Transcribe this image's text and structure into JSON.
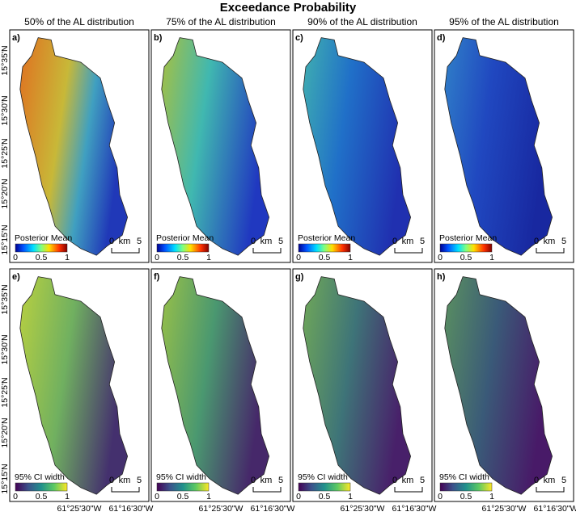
{
  "title": "Exceedance Probability",
  "columns": [
    "50% of the AL distribution",
    "75% of the AL distribution",
    "90% of the AL distribution",
    "95% of the AL distribution"
  ],
  "rows": [
    {
      "panels": [
        "a)",
        "b)",
        "c)",
        "d)"
      ],
      "legend_title": "Posterior Mean",
      "legend_ticks": [
        "0",
        "0.5",
        "1"
      ]
    },
    {
      "panels": [
        "e)",
        "f)",
        "g)",
        "h)"
      ],
      "legend_title": "95% CI width",
      "legend_ticks": [
        "0",
        "0.5",
        "1"
      ]
    }
  ],
  "y_axis_labels": [
    "15°35'N",
    "15°30'N",
    "15°25'N",
    "15°20'N",
    "15°15'N"
  ],
  "x_axis_labels": [
    "61°25'30\"W",
    "61°16'30\"W"
  ],
  "scale_bar": {
    "start": "0",
    "unit": "km",
    "end": "5"
  }
}
